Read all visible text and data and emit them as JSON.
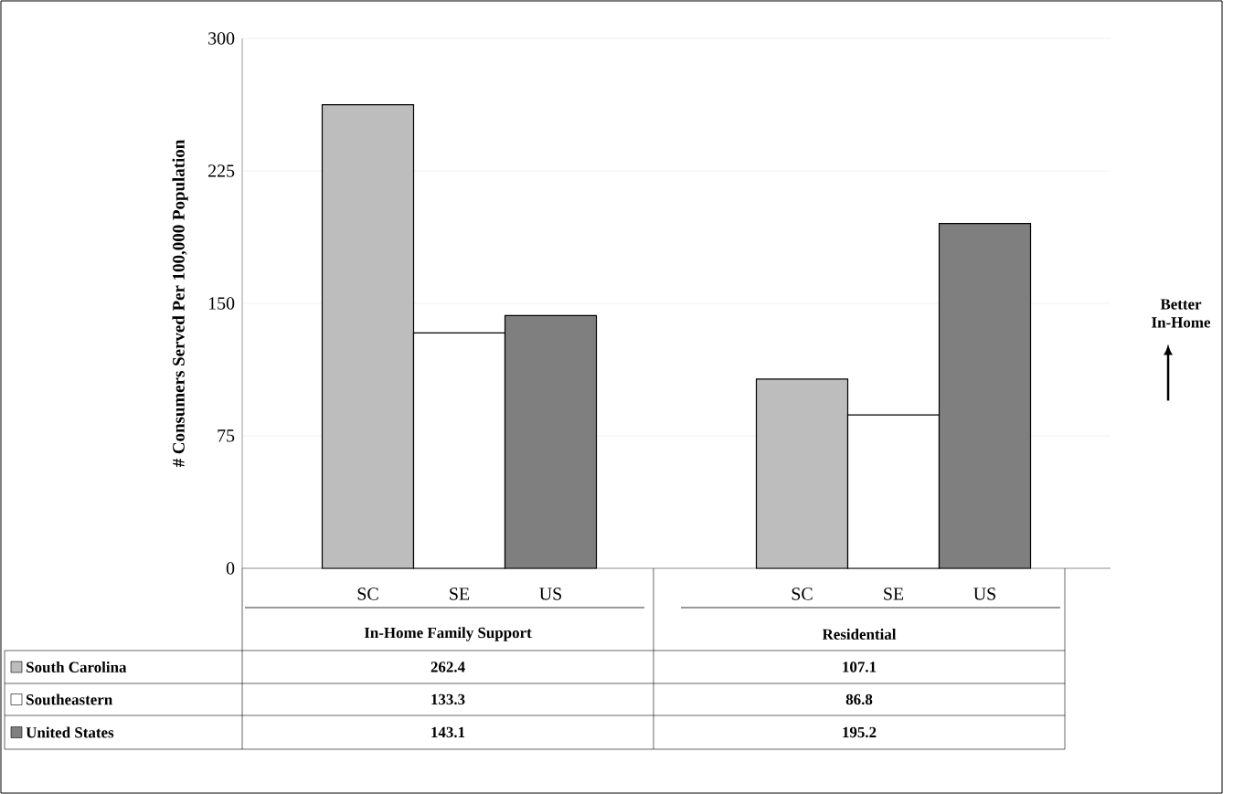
{
  "chart_data": {
    "type": "bar",
    "ylabel": "# Consumers Served Per 100,000 Population",
    "categories": [
      "In-Home Family Support",
      "Residential"
    ],
    "series": [
      {
        "name": "South Carolina",
        "color": "#bdbdbd",
        "values": [
          262.4,
          107.1
        ]
      },
      {
        "name": "Southeastern",
        "color": "#ffffff",
        "values": [
          133.3,
          86.8
        ]
      },
      {
        "name": "United States",
        "color": "#7f7f7f",
        "values": [
          143.1,
          195.2
        ]
      }
    ],
    "ylim": [
      0,
      300
    ],
    "yticks": [
      0,
      75,
      150,
      225,
      300
    ],
    "grid": "y",
    "legend": "bottom",
    "data_labels": true,
    "annotations": [
      "SC",
      "SE",
      "US",
      "SC",
      "SE",
      "US",
      "Better In-Home"
    ]
  }
}
